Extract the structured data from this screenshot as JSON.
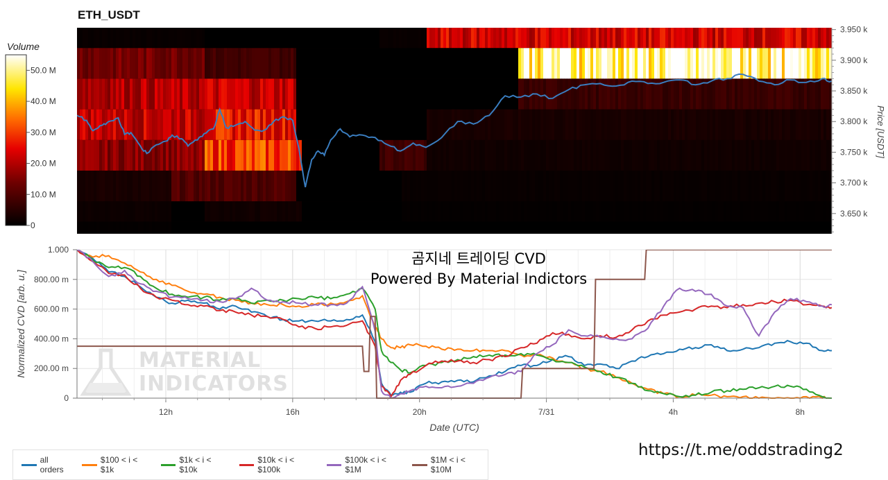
{
  "title": "ETH_USDT",
  "overlay": {
    "line1": "곰지네 트레이딩 CVD",
    "line2": "Powered By Material Indictors"
  },
  "footer_url": "https://t.me/oddstrading2",
  "watermark": {
    "line1": "MATERIAL",
    "line2": "INDICATORS"
  },
  "colors": {
    "all_orders": "#1f77b4",
    "o100_1k": "#ff7f0e",
    "o1k_10k": "#2ca02c",
    "o10k_100k": "#d62728",
    "o100k_1m": "#9467bd",
    "o1m_10m": "#8c564b",
    "price_line": "#3a7dbf"
  },
  "chart_data": [
    {
      "type": "heatmap",
      "title": "ETH_USDT",
      "colorbar": {
        "title": "Volume",
        "ticks": [
          "0",
          "10.0 M",
          "20.0 M",
          "30.0 M",
          "40.0 M",
          "50.0 M"
        ],
        "range": [
          0,
          55
        ]
      },
      "x_range_hours": [
        9.5,
        9.1
      ],
      "ylabel": "Price [USDT]",
      "yticks": [
        "3.650 k",
        "3.700 k",
        "3.750 k",
        "3.800 k",
        "3.850 k",
        "3.900 k",
        "3.950 k"
      ],
      "ylim": [
        3617,
        3953
      ],
      "price_bands": [
        [
          3617,
          3637,
          [
            [
              0.0,
              0.5,
              2
            ],
            [
              2.7,
              0.0,
              4
            ],
            [
              4.7,
              1.5,
              2
            ],
            [
              7.0,
              0,
              16.3
            ]
          ]
        ],
        [
          3637,
          3670,
          [
            [
              0.0,
              1.5,
              2
            ],
            [
              2.7,
              2.0,
              4.8
            ],
            [
              4.7,
              2.5,
              2
            ],
            [
              7.0,
              0.5,
              16.3
            ]
          ]
        ],
        [
          3670,
          3720,
          [
            [
              0.0,
              3,
              2.0
            ],
            [
              2.0,
              10,
              4.7
            ],
            [
              4.7,
              4,
              2.2
            ],
            [
              7.0,
              1,
              16.3
            ]
          ]
        ],
        [
          3720,
          3770,
          [
            [
              0.0,
              16,
              2.7
            ],
            [
              2.7,
              30,
              4.8
            ],
            [
              4.7,
              12,
              1.8
            ],
            [
              6.5,
              8,
              7.5
            ],
            [
              7.5,
              2,
              16.3
            ]
          ]
        ],
        [
          3770,
          3820,
          [
            [
              0.0,
              22,
              2.7
            ],
            [
              2.7,
              26,
              4.7
            ],
            [
              4.7,
              4,
              1.3
            ],
            [
              6.6,
              19,
              2.5
            ],
            [
              7.5,
              3,
              16.3
            ]
          ]
        ],
        [
          3820,
          3870,
          [
            [
              0.0,
              20,
              2.7
            ],
            [
              2.7,
              22,
              4.7
            ],
            [
              4.7,
              7,
              1.0
            ],
            [
              6.6,
              18,
              3.0
            ],
            [
              7.5,
              26,
              7.0
            ],
            [
              9.5,
              7,
              16.3
            ]
          ]
        ],
        [
          3870,
          3920,
          [
            [
              0.0,
              14,
              2.7
            ],
            [
              2.7,
              8,
              4.7
            ],
            [
              4.7,
              2,
              0.9
            ],
            [
              6.6,
              3,
              3.0
            ],
            [
              7.5,
              46,
              7.4
            ],
            [
              9.5,
              52,
              16.3
            ]
          ]
        ],
        [
          3920,
          3953,
          [
            [
              0.0,
              1,
              2.7
            ],
            [
              2.7,
              0,
              6.5
            ],
            [
              6.5,
              1,
              7.5
            ],
            [
              7.5,
              23,
              16.3
            ]
          ]
        ]
      ],
      "price_series": {
        "x_hours_from_start": [
          0,
          0.3,
          0.5,
          0.8,
          1.0,
          1.3,
          1.5,
          1.7,
          2.0,
          2.2,
          2.5,
          2.8,
          3.0,
          3.3,
          3.5,
          3.8,
          4.0,
          4.3,
          4.5,
          4.7,
          5.0,
          5.3,
          5.6,
          5.9,
          6.2,
          6.5,
          6.8,
          7.0,
          7.2,
          7.4,
          7.6,
          7.8,
          8.0,
          8.3,
          8.6,
          9.0,
          9.4,
          9.8,
          10.2,
          10.6,
          11.0,
          11.5,
          12.0,
          12.5,
          13.0,
          13.5,
          14.0,
          14.5,
          15.0,
          15.5,
          16.0,
          16.5,
          17.0,
          17.5,
          18.0,
          18.5,
          19.0,
          19.5,
          20.0,
          20.5,
          21.0,
          21.5,
          22.0,
          22.5,
          23.0,
          23.5,
          23.8
        ],
        "y": [
          3810,
          3802,
          3785,
          3794,
          3800,
          3806,
          3779,
          3782,
          3760,
          3748,
          3762,
          3768,
          3778,
          3772,
          3760,
          3770,
          3780,
          3788,
          3820,
          3790,
          3794,
          3800,
          3786,
          3786,
          3800,
          3808,
          3802,
          3755,
          3693,
          3738,
          3752,
          3745,
          3770,
          3788,
          3775,
          3778,
          3774,
          3762,
          3752,
          3765,
          3758,
          3774,
          3800,
          3796,
          3810,
          3842,
          3840,
          3845,
          3838,
          3852,
          3860,
          3862,
          3858,
          3866,
          3862,
          3864,
          3868,
          3860,
          3866,
          3870,
          3877,
          3866,
          3860,
          3868,
          3864,
          3870,
          3866
        ]
      }
    },
    {
      "type": "line",
      "ylabel": "Normalized CVD [arb. u.]",
      "xlabel": "Date (UTC)",
      "xticks": [
        "12h",
        "16h",
        "20h",
        "7/31",
        "4h",
        "8h"
      ],
      "xtick_hours": [
        2.8,
        6.8,
        10.8,
        14.8,
        18.8,
        22.8
      ],
      "x_range_hours": [
        0,
        23.8
      ],
      "yticks": [
        "0",
        "200.00 m",
        "400.00 m",
        "600.00 m",
        "800.00 m",
        "1.000"
      ],
      "ylim": [
        0,
        1.0
      ],
      "grid": true,
      "legend_position": "bottom-left",
      "series": [
        {
          "name": "all orders",
          "color_key": "all_orders",
          "x": [
            0,
            0.5,
            1.0,
            1.5,
            2.0,
            2.5,
            3.0,
            3.5,
            4.0,
            4.5,
            5.0,
            5.5,
            6.0,
            6.5,
            7.0,
            7.5,
            8.0,
            8.5,
            9.0,
            9.4,
            9.6,
            9.9,
            10.2,
            10.5,
            11.0,
            11.5,
            12.0,
            12.5,
            13.0,
            13.5,
            14.0,
            14.5,
            15.0,
            15.5,
            16.0,
            16.5,
            17.0,
            17.5,
            18.0,
            18.5,
            19.0,
            19.5,
            20.0,
            20.5,
            21.0,
            21.5,
            22.0,
            22.5,
            23.0,
            23.5,
            23.8
          ],
          "y": [
            1.0,
            0.94,
            0.85,
            0.82,
            0.75,
            0.68,
            0.64,
            0.66,
            0.64,
            0.6,
            0.62,
            0.58,
            0.55,
            0.53,
            0.52,
            0.52,
            0.52,
            0.53,
            0.56,
            0.38,
            0.1,
            0.02,
            0.04,
            0.04,
            0.1,
            0.11,
            0.12,
            0.11,
            0.15,
            0.18,
            0.22,
            0.22,
            0.26,
            0.28,
            0.22,
            0.23,
            0.2,
            0.25,
            0.28,
            0.3,
            0.33,
            0.34,
            0.36,
            0.32,
            0.33,
            0.34,
            0.37,
            0.38,
            0.37,
            0.32,
            0.32
          ]
        },
        {
          "name": "$100 < i < $1k",
          "color_key": "o100_1k",
          "x": [
            0,
            0.5,
            1.0,
            1.5,
            2.0,
            2.5,
            3.0,
            3.5,
            4.0,
            4.5,
            5.0,
            5.5,
            6.0,
            6.5,
            7.0,
            7.5,
            8.0,
            8.5,
            9.0,
            9.4,
            9.6,
            9.9,
            10.2,
            10.5,
            11.0,
            11.5,
            12.0,
            12.5,
            13.0,
            13.5,
            14.0,
            14.5,
            15.0,
            15.5,
            16.0,
            16.5,
            17.0,
            17.5,
            18.0,
            18.5,
            19.0,
            19.5,
            20.0,
            20.5,
            21.0,
            21.5,
            22.0,
            22.5,
            23.0,
            23.5,
            23.8
          ],
          "y": [
            1.0,
            0.95,
            0.96,
            0.91,
            0.85,
            0.8,
            0.76,
            0.72,
            0.7,
            0.68,
            0.66,
            0.64,
            0.63,
            0.63,
            0.62,
            0.63,
            0.64,
            0.65,
            0.69,
            0.48,
            0.4,
            0.34,
            0.34,
            0.36,
            0.35,
            0.33,
            0.33,
            0.32,
            0.32,
            0.32,
            0.29,
            0.29,
            0.27,
            0.24,
            0.2,
            0.18,
            0.14,
            0.1,
            0.06,
            0.03,
            0.01,
            0.02,
            0.02,
            0.01,
            0.01,
            0.0,
            0.0,
            0.0,
            0.01,
            0.0,
            0.0
          ]
        },
        {
          "name": "$1k < i < $10k",
          "color_key": "o1k_10k",
          "x": [
            0,
            0.5,
            1.0,
            1.5,
            2.0,
            2.5,
            3.0,
            3.5,
            4.0,
            4.5,
            5.0,
            5.5,
            6.0,
            6.5,
            7.0,
            7.5,
            8.0,
            8.5,
            9.0,
            9.4,
            9.6,
            9.9,
            10.2,
            10.5,
            11.0,
            11.5,
            12.0,
            12.5,
            13.0,
            13.5,
            14.0,
            14.5,
            15.0,
            15.5,
            16.0,
            16.5,
            17.0,
            17.5,
            18.0,
            18.5,
            19.0,
            19.5,
            20.0,
            20.5,
            21.0,
            21.5,
            22.0,
            22.5,
            23.0,
            23.5,
            23.8
          ],
          "y": [
            1.0,
            0.93,
            0.88,
            0.88,
            0.82,
            0.74,
            0.7,
            0.68,
            0.68,
            0.66,
            0.67,
            0.64,
            0.66,
            0.66,
            0.67,
            0.68,
            0.67,
            0.7,
            0.74,
            0.6,
            0.32,
            0.24,
            0.19,
            0.17,
            0.22,
            0.24,
            0.26,
            0.28,
            0.29,
            0.29,
            0.3,
            0.29,
            0.26,
            0.24,
            0.21,
            0.18,
            0.14,
            0.1,
            0.05,
            0.03,
            0.01,
            0.02,
            0.04,
            0.05,
            0.06,
            0.07,
            0.08,
            0.08,
            0.06,
            0.01,
            0.0
          ]
        },
        {
          "name": "$10k < i < $100k",
          "color_key": "o10k_100k",
          "x": [
            0,
            0.5,
            1.0,
            1.5,
            2.0,
            2.5,
            3.0,
            3.5,
            4.0,
            4.5,
            5.0,
            5.5,
            6.0,
            6.5,
            7.0,
            7.5,
            8.0,
            8.5,
            9.0,
            9.4,
            9.6,
            9.9,
            10.2,
            10.5,
            11.0,
            11.5,
            12.0,
            12.5,
            13.0,
            13.5,
            14.0,
            14.5,
            15.0,
            15.5,
            16.0,
            16.5,
            17.0,
            17.5,
            18.0,
            18.5,
            19.0,
            19.5,
            20.0,
            20.5,
            21.0,
            21.5,
            22.0,
            22.5,
            23.0,
            23.5,
            23.8
          ],
          "y": [
            1.0,
            0.92,
            0.84,
            0.83,
            0.74,
            0.68,
            0.66,
            0.63,
            0.62,
            0.59,
            0.58,
            0.56,
            0.55,
            0.53,
            0.48,
            0.47,
            0.48,
            0.49,
            0.52,
            0.35,
            0.08,
            0.01,
            0.12,
            0.16,
            0.22,
            0.25,
            0.25,
            0.24,
            0.26,
            0.28,
            0.34,
            0.37,
            0.44,
            0.43,
            0.4,
            0.42,
            0.41,
            0.46,
            0.52,
            0.56,
            0.58,
            0.6,
            0.62,
            0.61,
            0.63,
            0.64,
            0.65,
            0.66,
            0.63,
            0.62,
            0.61
          ]
        },
        {
          "name": "$100k < i < $1M",
          "color_key": "o100k_1m",
          "x": [
            0,
            0.5,
            1.0,
            1.5,
            2.0,
            2.5,
            3.0,
            3.5,
            4.0,
            4.5,
            5.0,
            5.5,
            6.0,
            6.5,
            7.0,
            7.5,
            8.0,
            8.5,
            9.0,
            9.4,
            9.6,
            9.9,
            10.2,
            10.5,
            11.0,
            11.5,
            12.0,
            12.5,
            13.0,
            13.5,
            14.0,
            14.5,
            15.0,
            15.5,
            16.0,
            16.5,
            17.0,
            17.5,
            18.0,
            18.5,
            19.0,
            19.5,
            20.0,
            20.5,
            21.0,
            21.5,
            22.0,
            22.5,
            23.0,
            23.5,
            23.8
          ],
          "y": [
            1.0,
            0.92,
            0.82,
            0.86,
            0.77,
            0.72,
            0.68,
            0.67,
            0.66,
            0.65,
            0.67,
            0.74,
            0.66,
            0.65,
            0.64,
            0.63,
            0.63,
            0.64,
            0.75,
            0.45,
            0.05,
            0.0,
            0.03,
            0.05,
            0.08,
            0.07,
            0.08,
            0.1,
            0.14,
            0.16,
            0.18,
            0.3,
            0.36,
            0.46,
            0.42,
            0.41,
            0.4,
            0.4,
            0.47,
            0.62,
            0.74,
            0.72,
            0.7,
            0.62,
            0.61,
            0.42,
            0.58,
            0.67,
            0.65,
            0.62,
            0.63
          ]
        },
        {
          "name": "$1M < i < $10M",
          "color_key": "o1m_10m",
          "x": [
            0,
            9.0,
            9.05,
            9.2,
            9.25,
            9.4,
            9.45,
            10.5,
            14.0,
            14.05,
            16.3,
            16.35,
            17.9,
            17.95,
            21.5,
            23.8
          ],
          "y": [
            0.35,
            0.35,
            0.18,
            0.18,
            0.55,
            0.55,
            0.0,
            0.0,
            0.0,
            0.2,
            0.2,
            0.8,
            0.8,
            1.0,
            1.0,
            1.0
          ]
        }
      ]
    }
  ]
}
